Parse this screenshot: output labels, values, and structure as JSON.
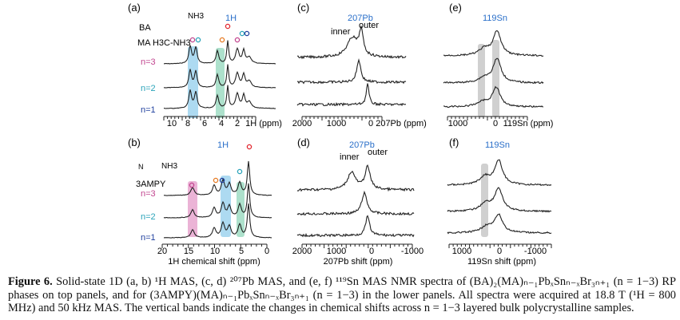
{
  "panels": {
    "a": {
      "label": "(a)",
      "nucleus": "1H",
      "rows": [
        "n=3",
        "n=2",
        "n=1"
      ],
      "ticks": [
        "10",
        "8",
        "6",
        "4",
        "2"
      ],
      "axis_unit": "1H (ppm)",
      "structure_labels": [
        "BA",
        "MA H3C-NH3",
        "NH3"
      ]
    },
    "b": {
      "label": "(b)",
      "nucleus": "1H",
      "rows": [
        "n=3",
        "n=2",
        "n=1"
      ],
      "ticks": [
        "20",
        "15",
        "10",
        "5",
        "0"
      ],
      "axis_title": "1H chemical shift (ppm)",
      "structure_labels": [
        "3AMPY",
        "N",
        "NH3"
      ]
    },
    "c": {
      "label": "(c)",
      "nucleus": "207Pb",
      "peak_labels": [
        "inner",
        "outer"
      ],
      "ticks": [
        "2000",
        "1000",
        "0"
      ],
      "axis_unit": "207Pb (ppm)"
    },
    "d": {
      "label": "(d)",
      "nucleus": "207Pb",
      "peak_labels": [
        "inner",
        "outer"
      ],
      "ticks": [
        "2000",
        "1000",
        "0",
        "-1000"
      ],
      "axis_title": "207Pb shift (ppm)"
    },
    "e": {
      "label": "(e)",
      "nucleus": "119Sn",
      "ticks": [
        "1000",
        "0"
      ],
      "axis_unit": "119Sn (ppm)"
    },
    "f": {
      "label": "(f)",
      "nucleus": "119Sn",
      "ticks": [
        "1000",
        "0",
        "-1000"
      ],
      "axis_title": "119Sn shift (ppm)"
    }
  },
  "colors": {
    "blue": "#9fd3ee",
    "green": "#9fdcc3",
    "pink": "#e7a6cf",
    "gray": "#c8c8c8",
    "red": "#e2262e",
    "cyan": "#2aa3b9",
    "magenta": "#c2458f",
    "navy": "#1f3f9e",
    "orange": "#e67a22"
  },
  "caption": {
    "label": "Figure 6.",
    "text": "Solid-state 1D (a, b) ¹H MAS, (c, d) ²⁰⁷Pb MAS, and (e, f) ¹¹⁹Sn MAS NMR spectra of (BA)₂(MA)ₙ₋₁PbₓSnₙ₋ₓBr₃ₙ₊₁ (n = 1−3) RP phases on top panels, and for (3AMPY)(MA)ₙ₋₁PbₓSnₙ₋ₓBr₃ₙ₊₁ (n = 1−3) in the lower panels. All spectra were acquired at 18.8 T (¹H = 800 MHz) and 50 kHz MAS. The vertical bands indicate the changes in chemical shifts across n = 1−3 layered bulk polycrystalline samples."
  }
}
